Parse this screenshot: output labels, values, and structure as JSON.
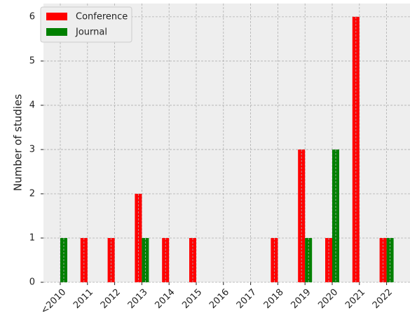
{
  "chart_data": {
    "type": "bar",
    "y_label": "Number of studies",
    "categories": [
      "<2010",
      "2011",
      "2012",
      "2013",
      "2014",
      "2015",
      "2016",
      "2017",
      "2018",
      "2019",
      "2020",
      "2021",
      "2022"
    ],
    "series": [
      {
        "name": "Conference",
        "color": "#ff0000",
        "values": [
          0,
          1,
          1,
          2,
          1,
          1,
          0,
          0,
          1,
          3,
          1,
          6,
          1
        ]
      },
      {
        "name": "Journal",
        "color": "#008000",
        "values": [
          1,
          0,
          0,
          1,
          0,
          0,
          0,
          0,
          0,
          1,
          3,
          0,
          1
        ]
      }
    ],
    "ylim": [
      0,
      6.3
    ],
    "yticks": [
      0,
      1,
      2,
      3,
      4,
      5,
      6
    ],
    "grid": true,
    "legend": "upper left"
  }
}
